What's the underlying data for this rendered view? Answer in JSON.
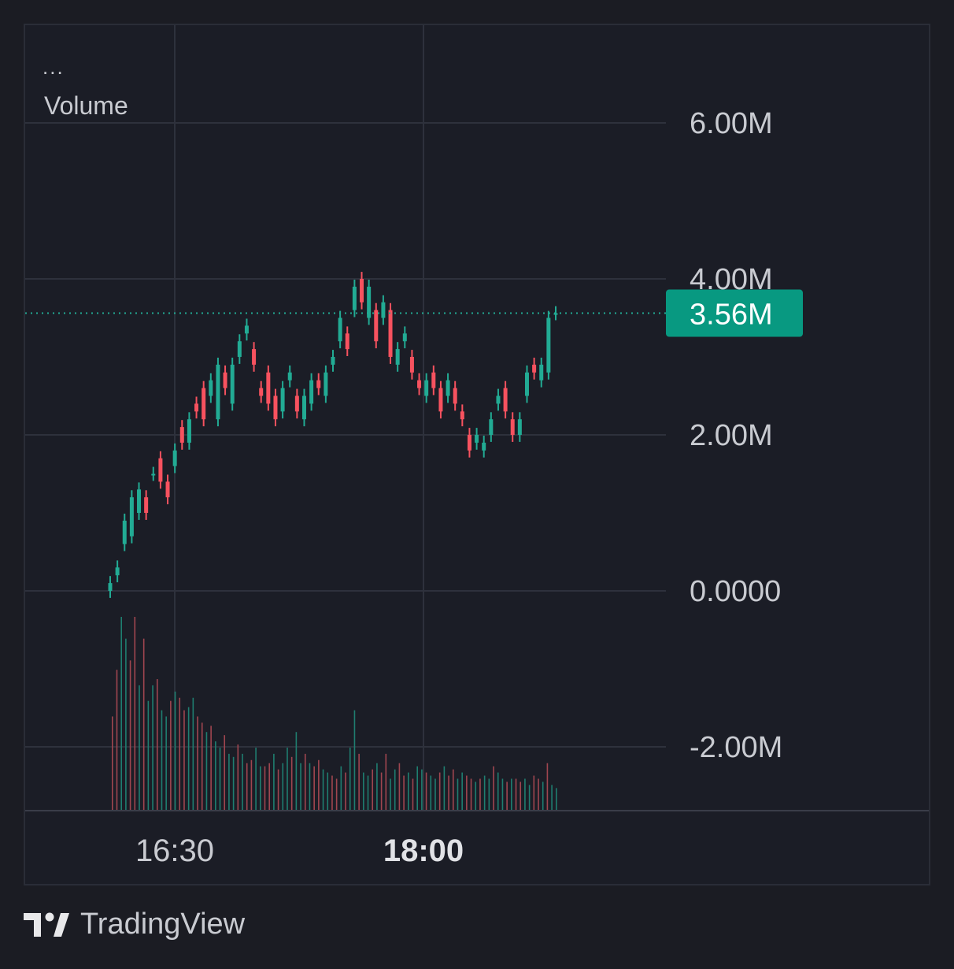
{
  "legend": {
    "menu_glyph": "...",
    "indicator": "Volume"
  },
  "brand": {
    "name": "TradingView"
  },
  "colors": {
    "up": "#22ab94",
    "down": "#f7525f",
    "background": "#1b1d26",
    "grid": "#2e313c",
    "axis_text": "#c9cbd1",
    "last_price_label": "#089981"
  },
  "chart_data": {
    "type": "candlestick",
    "title": "",
    "price_axis": {
      "ticks": [
        "6.00M",
        "4.00M",
        "2.00M",
        "0.0000",
        "-2.00M"
      ],
      "tick_values": [
        6000000,
        4000000,
        2000000,
        0,
        -2000000
      ],
      "range": [
        -2800000,
        6000000
      ]
    },
    "time_axis": {
      "ticks": [
        "16:30",
        "18:00"
      ],
      "emphasized": "18:00"
    },
    "last_value": {
      "label": "3.56M",
      "value": 3560000
    },
    "grid": true,
    "series": [
      {
        "name": "price",
        "ohlc_close_path": [
          [
            0,
            0.1
          ],
          [
            0.2,
            0.3
          ],
          [
            0.6,
            0.9
          ],
          [
            0.7,
            1.2
          ],
          [
            1.0,
            1.3
          ],
          [
            1.2,
            1.0
          ],
          [
            1.5,
            1.5
          ],
          [
            1.7,
            1.4
          ],
          [
            1.4,
            1.2
          ],
          [
            1.6,
            1.8
          ],
          [
            2.1,
            1.9
          ],
          [
            1.9,
            2.2
          ],
          [
            2.4,
            2.3
          ],
          [
            2.6,
            2.2
          ],
          [
            2.5,
            2.7
          ],
          [
            2.2,
            2.9
          ],
          [
            2.8,
            2.6
          ],
          [
            2.4,
            2.9
          ],
          [
            3.0,
            3.2
          ],
          [
            3.3,
            3.4
          ],
          [
            3.1,
            2.9
          ],
          [
            2.6,
            2.5
          ],
          [
            2.8,
            2.4
          ],
          [
            2.5,
            2.2
          ],
          [
            2.3,
            2.6
          ],
          [
            2.7,
            2.8
          ],
          [
            2.5,
            2.3
          ],
          [
            2.2,
            2.5
          ],
          [
            2.4,
            2.7
          ],
          [
            2.7,
            2.6
          ],
          [
            2.5,
            2.8
          ],
          [
            2.9,
            3.0
          ],
          [
            3.2,
            3.5
          ],
          [
            3.3,
            3.1
          ],
          [
            3.6,
            3.9
          ],
          [
            4.0,
            3.7
          ],
          [
            3.5,
            3.9
          ],
          [
            3.6,
            3.2
          ],
          [
            3.5,
            3.7
          ],
          [
            3.6,
            3.0
          ],
          [
            2.9,
            3.1
          ],
          [
            3.2,
            3.3
          ],
          [
            3.0,
            2.8
          ],
          [
            2.7,
            2.6
          ],
          [
            2.5,
            2.7
          ],
          [
            2.8,
            2.6
          ],
          [
            2.6,
            2.3
          ],
          [
            2.5,
            2.7
          ],
          [
            2.6,
            2.4
          ],
          [
            2.3,
            2.2
          ],
          [
            2.0,
            1.8
          ],
          [
            1.9,
            2.0
          ],
          [
            1.8,
            1.9
          ],
          [
            2.0,
            2.2
          ],
          [
            2.4,
            2.5
          ],
          [
            2.6,
            2.3
          ],
          [
            2.2,
            2.0
          ],
          [
            2.0,
            2.2
          ],
          [
            2.5,
            2.8
          ],
          [
            2.9,
            2.8
          ],
          [
            2.7,
            2.9
          ],
          [
            2.8,
            3.5
          ],
          [
            3.56,
            3.56
          ]
        ]
      }
    ],
    "volume": [
      0.3,
      0.45,
      0.62,
      0.55,
      0.48,
      0.62,
      0.4,
      0.55,
      0.35,
      0.4,
      0.42,
      0.32,
      0.3,
      0.35,
      0.38,
      0.36,
      0.32,
      0.33,
      0.36,
      0.3,
      0.28,
      0.25,
      0.27,
      0.22,
      0.2,
      0.24,
      0.18,
      0.17,
      0.21,
      0.18,
      0.15,
      0.16,
      0.2,
      0.14,
      0.14,
      0.15,
      0.18,
      0.13,
      0.15,
      0.2,
      0.17,
      0.25,
      0.15,
      0.18,
      0.15,
      0.14,
      0.16,
      0.13,
      0.12,
      0.11,
      0.1,
      0.14,
      0.12,
      0.2,
      0.32,
      0.18,
      0.12,
      0.11,
      0.13,
      0.15,
      0.12,
      0.18,
      0.1,
      0.13,
      0.15,
      0.11,
      0.12,
      0.1,
      0.14,
      0.13,
      0.12,
      0.11,
      0.1,
      0.12,
      0.14,
      0.11,
      0.13,
      0.1,
      0.12,
      0.11,
      0.1,
      0.09,
      0.1,
      0.11,
      0.1,
      0.14,
      0.12,
      0.1,
      0.09,
      0.1,
      0.1,
      0.09,
      0.1,
      0.08,
      0.11,
      0.1,
      0.09,
      0.15,
      0.08,
      0.07
    ]
  }
}
